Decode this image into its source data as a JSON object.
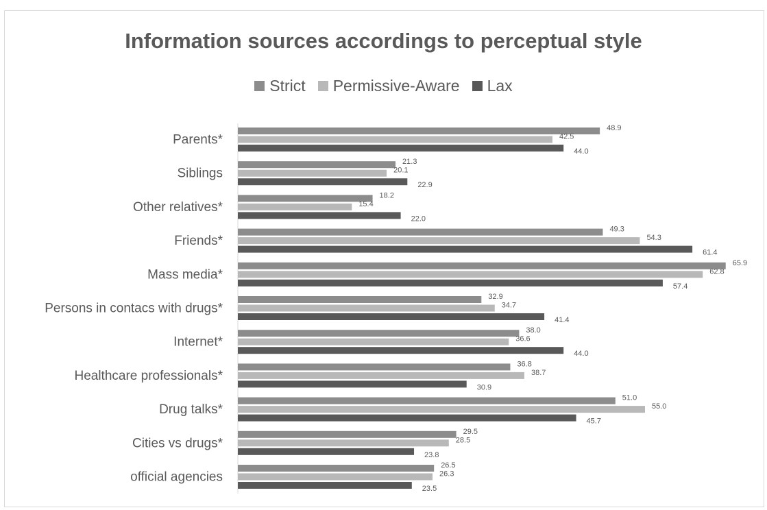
{
  "chart_data": {
    "type": "bar",
    "orientation": "horizontal",
    "title": "Information sources accordings to perceptual style",
    "categories": [
      "Parents*",
      "Siblings",
      "Other relatives*",
      "Friends*",
      "Mass media*",
      "Persons in contacs with drugs*",
      "Internet*",
      "Healthcare professionals*",
      "Drug talks*",
      "Cities vs drugs*",
      "official agencies"
    ],
    "series": [
      {
        "name": "Strict",
        "color": "#8c8c8c",
        "values": [
          48.9,
          21.3,
          18.2,
          49.3,
          65.9,
          32.9,
          38.0,
          36.8,
          51.0,
          29.5,
          26.5
        ]
      },
      {
        "name": "Permissive-Aware",
        "color": "#b8b8b8",
        "values": [
          42.5,
          20.1,
          15.4,
          54.3,
          62.8,
          34.7,
          36.6,
          38.7,
          55.0,
          28.5,
          26.3
        ]
      },
      {
        "name": "Lax",
        "color": "#595959",
        "values": [
          44.0,
          22.9,
          22.0,
          61.4,
          57.4,
          41.4,
          44.0,
          30.9,
          45.7,
          23.8,
          23.5
        ]
      }
    ],
    "xlim": [
      0,
      70
    ],
    "legend_position": "top",
    "grid": false,
    "value_labels": true
  }
}
